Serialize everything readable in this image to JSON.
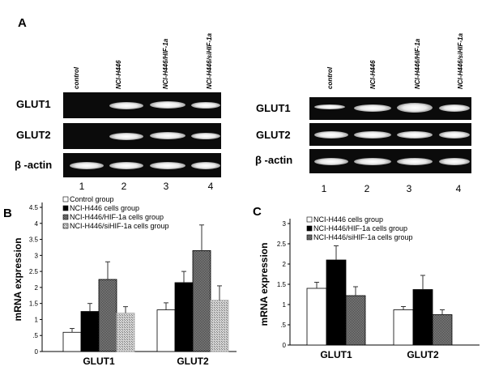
{
  "panel_a": {
    "letter": "A",
    "left_blot": {
      "lane_labels": [
        "control",
        "NCI-H446",
        "NCI-H446/HIF-1a",
        "NCI-H446/siHIF-1a"
      ],
      "rows": [
        "GLUT1",
        "GLUT2",
        "β -actin"
      ],
      "lane_numbers": [
        "1",
        "2",
        "3",
        "4"
      ]
    },
    "right_blot": {
      "lane_labels": [
        "control",
        "NCI-H446",
        "NCI-H446/HIF-1a",
        "NCI-H446/siHIF-1a"
      ],
      "rows": [
        "GLUT1",
        "GLUT2",
        "β -actin"
      ],
      "lane_numbers": [
        "1",
        "2",
        "3",
        "4"
      ]
    }
  },
  "chart_data": [
    {
      "panel": "B",
      "type": "bar",
      "ylabel": "mRNA expression",
      "categories": [
        "GLUT1",
        "GLUT2"
      ],
      "yticks": [
        "0",
        ".5",
        "1",
        "1.5",
        "2",
        "2.5",
        "3",
        "3.5",
        "4",
        "4.5"
      ],
      "ylim": [
        0,
        4.5
      ],
      "series": [
        {
          "name": "Control group",
          "values": [
            0.6,
            1.3
          ],
          "errors": [
            0.12,
            0.22
          ],
          "fill": "white"
        },
        {
          "name": "NCI-H446 cells group",
          "values": [
            1.25,
            2.15
          ],
          "errors": [
            0.25,
            0.35
          ],
          "fill": "black"
        },
        {
          "name": "NCI-H446/HIF-1a cells group",
          "values": [
            2.25,
            3.15
          ],
          "errors": [
            0.55,
            0.8
          ],
          "fill": "dark-speckled"
        },
        {
          "name": "NCI-H446/siHIF-1a cells group",
          "values": [
            1.2,
            1.6
          ],
          "errors": [
            0.2,
            0.45
          ],
          "fill": "light-speckled"
        }
      ]
    },
    {
      "panel": "C",
      "type": "bar",
      "ylabel": "mRNA expression",
      "categories": [
        "GLUT1",
        "GLUT2"
      ],
      "yticks": [
        "0",
        ".5",
        "1",
        "1.5",
        "2",
        "2.5",
        "3"
      ],
      "ylim": [
        0,
        3
      ],
      "series": [
        {
          "name": "NCI-H446 cells group",
          "values": [
            1.4,
            0.87
          ],
          "errors": [
            0.15,
            0.08
          ],
          "fill": "white"
        },
        {
          "name": "NCI-H446/HIF-1a cells group",
          "values": [
            2.1,
            1.37
          ],
          "errors": [
            0.35,
            0.35
          ],
          "fill": "black"
        },
        {
          "name": "NCI-H446/siHIF-1a cells group",
          "values": [
            1.22,
            0.75
          ],
          "errors": [
            0.22,
            0.12
          ],
          "fill": "speckled"
        }
      ]
    }
  ]
}
